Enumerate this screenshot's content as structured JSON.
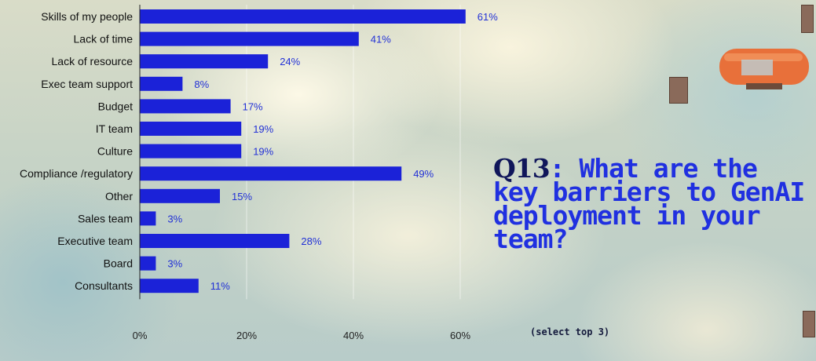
{
  "title": {
    "question_number": "Q13",
    "question_text": "What are the key barriers to GenAI deployment in your team?",
    "subtitle": "(select top 3)"
  },
  "colors": {
    "bar": "#1b22d8",
    "accent": "#2030e0"
  },
  "chart_data": {
    "type": "bar",
    "orientation": "horizontal",
    "categories": [
      "Skills of my people",
      "Lack of time",
      "Lack of resource",
      "Exec team support",
      "Budget",
      "IT team",
      "Culture",
      "Compliance /regulatory",
      "Other",
      "Sales team",
      "Executive team",
      "Board",
      "Consultants"
    ],
    "values": [
      61,
      41,
      24,
      8,
      17,
      19,
      19,
      49,
      15,
      3,
      28,
      3,
      11
    ],
    "value_labels": [
      "61%",
      "41%",
      "24%",
      "8%",
      "17%",
      "19%",
      "19%",
      "49%",
      "15%",
      "3%",
      "28%",
      "3%",
      "11%"
    ],
    "x_ticks": [
      "0%",
      "20%",
      "40%",
      "60%"
    ],
    "xlim": [
      0,
      80
    ],
    "grid": true,
    "legend": "none"
  }
}
